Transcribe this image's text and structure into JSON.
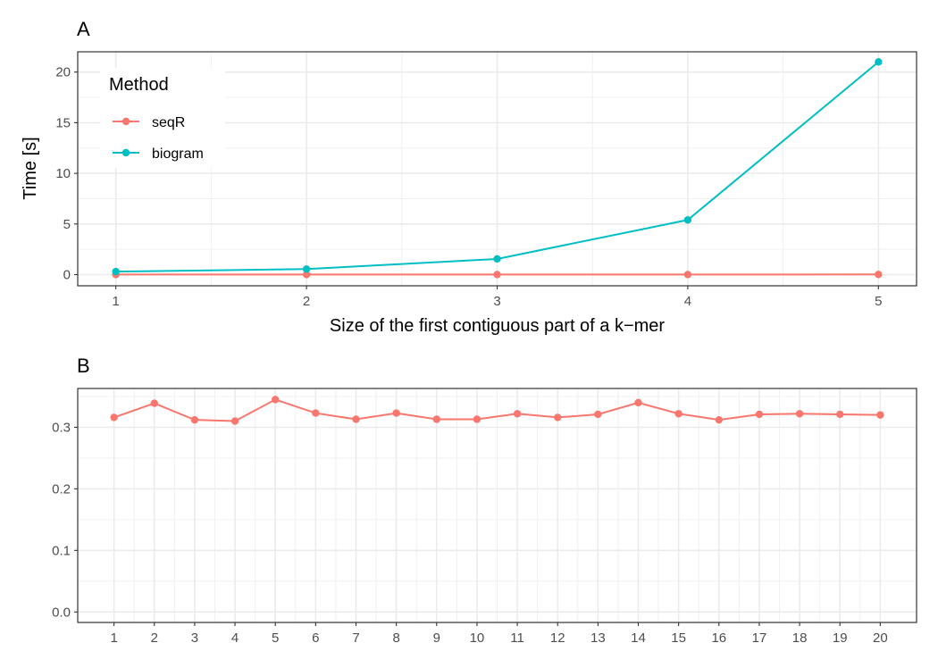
{
  "chart_data": [
    {
      "panel": "A",
      "type": "line",
      "xlabel": "Size of the first contiguous part of a k−mer",
      "ylabel": "Time [s]",
      "x": [
        1,
        2,
        3,
        4,
        5
      ],
      "xticks": [
        "1",
        "2",
        "3",
        "4",
        "5"
      ],
      "xlim": [
        0.8,
        5.2
      ],
      "yticks": [
        "0",
        "5",
        "10",
        "15",
        "20"
      ],
      "ylim": [
        -1.1,
        22
      ],
      "grid": true,
      "legend": {
        "title": "Method",
        "placement": "top-left inside",
        "entries": [
          "seqR",
          "biogram"
        ]
      },
      "series": [
        {
          "name": "seqR",
          "color": "#f8766d",
          "values": [
            0.01,
            0.01,
            0.01,
            0.01,
            0.02
          ]
        },
        {
          "name": "biogram",
          "color": "#00bfc4",
          "values": [
            0.3,
            0.55,
            1.55,
            5.4,
            21.0
          ]
        }
      ]
    },
    {
      "panel": "B",
      "type": "line",
      "xlabel": "",
      "ylabel": "",
      "x": [
        1,
        2,
        3,
        4,
        5,
        6,
        7,
        8,
        9,
        10,
        11,
        12,
        13,
        14,
        15,
        16,
        17,
        18,
        19,
        20
      ],
      "xticks": [
        "1",
        "2",
        "3",
        "4",
        "5",
        "6",
        "7",
        "8",
        "9",
        "10",
        "11",
        "12",
        "13",
        "14",
        "15",
        "16",
        "17",
        "18",
        "19",
        "20"
      ],
      "xlim": [
        0.1,
        20.9
      ],
      "yticks": [
        "0.0",
        "0.1",
        "0.2",
        "0.3"
      ],
      "ylim": [
        -0.017,
        0.363
      ],
      "grid": true,
      "series": [
        {
          "color": "#f8766d",
          "values": [
            0.316,
            0.339,
            0.312,
            0.31,
            0.345,
            0.323,
            0.313,
            0.323,
            0.313,
            0.313,
            0.322,
            0.316,
            0.321,
            0.34,
            0.322,
            0.312,
            0.321,
            0.322,
            0.321,
            0.32
          ]
        }
      ]
    }
  ]
}
